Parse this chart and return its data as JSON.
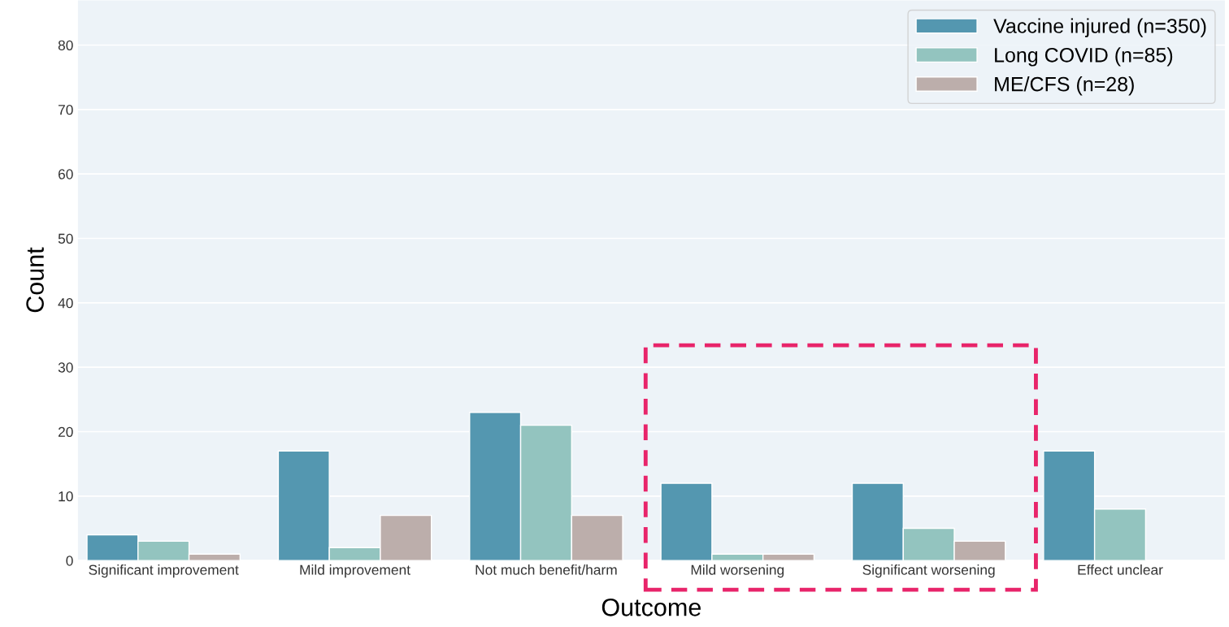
{
  "chart_data": {
    "type": "bar",
    "xlabel": "Outcome",
    "ylabel": "Count",
    "categories": [
      "Significant improvement",
      "Mild improvement",
      "Not much benefit/harm",
      "Mild worsening",
      "Significant worsening",
      "Effect unclear"
    ],
    "series": [
      {
        "name": "Vaccine injured (n=350)",
        "color": "#5497b0",
        "values": [
          4,
          17,
          23,
          12,
          12,
          17
        ]
      },
      {
        "name": "Long COVID (n=85)",
        "color": "#93c4bf",
        "values": [
          3,
          2,
          21,
          1,
          5,
          8
        ]
      },
      {
        "name": "ME/CFS (n=28)",
        "color": "#bcaeab",
        "values": [
          1,
          7,
          7,
          1,
          3,
          0
        ]
      }
    ],
    "ylim": [
      0,
      87
    ],
    "yticks": [
      0,
      10,
      20,
      30,
      40,
      50,
      60,
      70,
      80
    ],
    "grid": "y",
    "legend": "top right"
  }
}
